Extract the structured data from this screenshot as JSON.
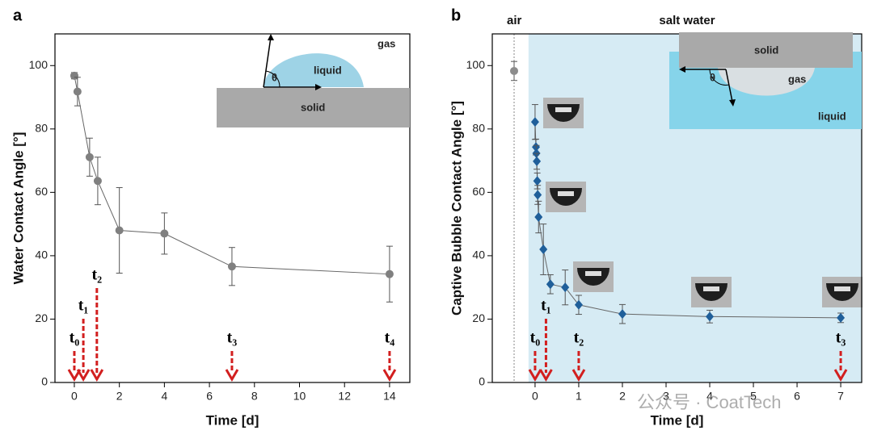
{
  "chart_data": [
    {
      "panel": "a",
      "type": "line",
      "xlabel": "Time [d]",
      "ylabel": "Water Contact Angle [°]",
      "xlim": [
        -0.86,
        14.9
      ],
      "ylim": [
        0,
        110
      ],
      "xticks": [
        0,
        2,
        4,
        6,
        8,
        10,
        12,
        14
      ],
      "yticks": [
        0,
        20,
        40,
        60,
        80,
        100
      ],
      "series": [
        {
          "color": "#808080",
          "marker": "circle",
          "x": [
            0,
            0.14,
            0.68,
            1.04,
            2,
            4,
            7,
            14
          ],
          "values": [
            96.8,
            91.8,
            71.1,
            63.6,
            48,
            47,
            36.6,
            34.2
          ],
          "errors": [
            1,
            4.5,
            6,
            7.5,
            13.5,
            6.5,
            6,
            8.8
          ]
        }
      ],
      "annotations": [
        {
          "x": 0,
          "label": "t₀"
        },
        {
          "x": 0.4,
          "label": "t₁"
        },
        {
          "x": 1,
          "label": "t₂"
        },
        {
          "x": 7,
          "label": "t₃"
        },
        {
          "x": 14,
          "label": "t₄"
        }
      ],
      "inset_labels": [
        "gas",
        "liquid",
        "θ",
        "solid"
      ]
    },
    {
      "panel": "b",
      "type": "line",
      "xlabel": "Time [d]",
      "ylabel": "Captive Bubble Contact Angle [°]",
      "xlim": [
        -0.98,
        7.48
      ],
      "ylim": [
        0,
        110
      ],
      "xticks": [
        0,
        1,
        2,
        3,
        4,
        5,
        6,
        7
      ],
      "yticks": [
        0,
        20,
        40,
        60,
        80,
        100
      ],
      "shade_from": -0.15,
      "shade_color": "#d6ebf4",
      "divider_x": -0.48,
      "region_labels": [
        "air",
        "salt water"
      ],
      "series": [
        {
          "color": "#8c8c8c",
          "marker": "circle",
          "x": [
            -0.48
          ],
          "values": [
            98.3
          ],
          "errors": [
            3
          ]
        },
        {
          "color": "#1f5f9a",
          "marker": "diamond",
          "x": [
            0,
            0.02,
            0.03,
            0.04,
            0.05,
            0.06,
            0.08,
            0.19,
            0.35,
            0.69,
            1,
            2,
            4,
            7
          ],
          "values": [
            82.2,
            74.3,
            72.3,
            69.8,
            63.6,
            59.2,
            52.2,
            42,
            31,
            30,
            24.5,
            21.6,
            20.8,
            20.4
          ],
          "errors": [
            5.5,
            2.5,
            2.5,
            2.5,
            2.5,
            3,
            5,
            8,
            3,
            5.5,
            3,
            3,
            2,
            1.5
          ]
        }
      ],
      "annotations": [
        {
          "x": 0,
          "label": "t₀"
        },
        {
          "x": 0.25,
          "label": "t₁"
        },
        {
          "x": 1,
          "label": "t₂"
        },
        {
          "x": 7,
          "label": "t₃"
        }
      ],
      "inset_labels": [
        "solid",
        "gas",
        "θ",
        "liquid"
      ]
    }
  ],
  "watermark": "公众号 · CoatTech"
}
